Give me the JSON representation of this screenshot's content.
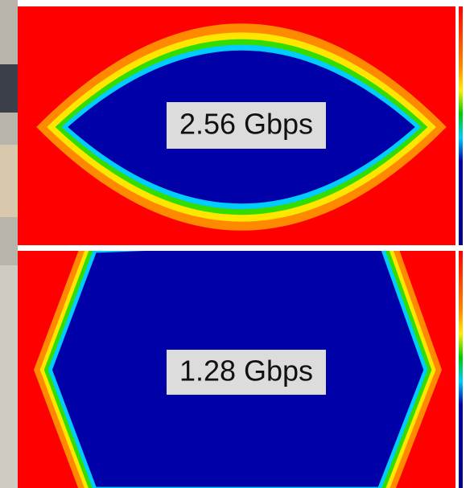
{
  "panels": [
    {
      "label": "2.56 Gbps"
    },
    {
      "label": "1.28 Gbps"
    }
  ]
}
